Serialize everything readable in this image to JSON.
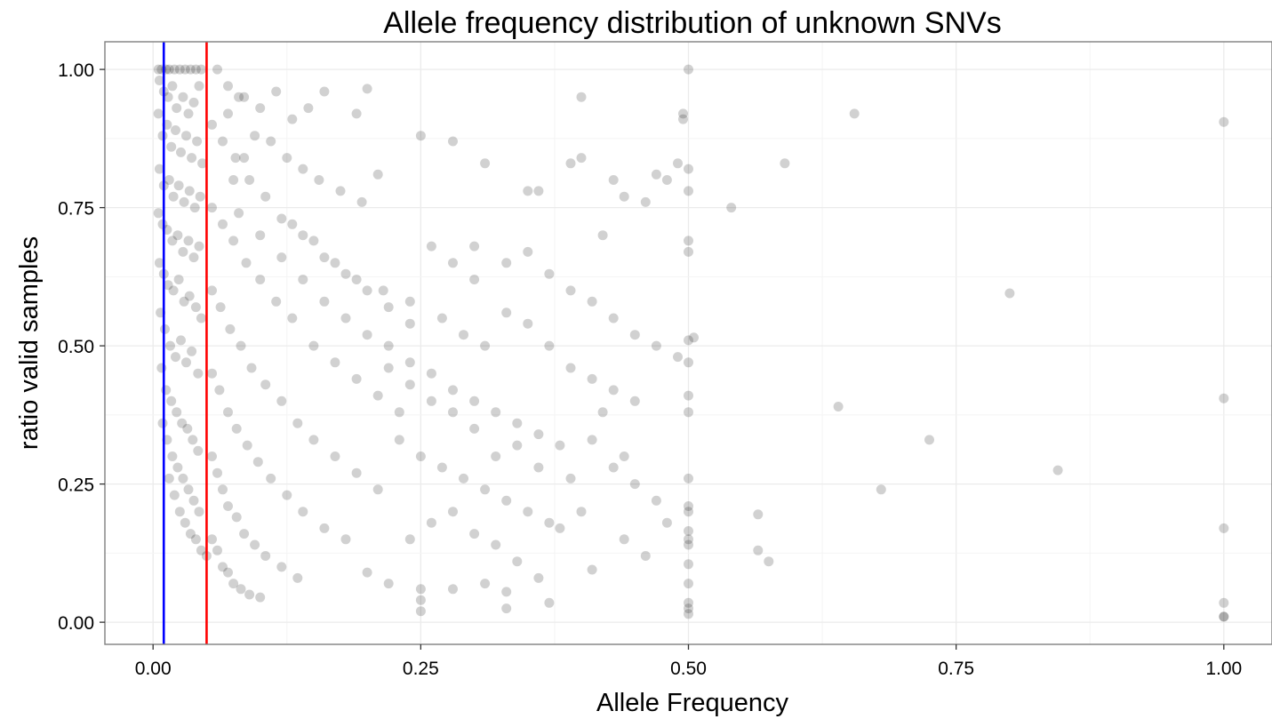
{
  "chart_data": {
    "type": "scatter",
    "title": "Allele frequency distribution of unknown SNVs",
    "xlabel": "Allele Frequency",
    "ylabel": "ratio valid samples",
    "xlim": [
      -0.045,
      1.045
    ],
    "ylim": [
      -0.04,
      1.05
    ],
    "x_ticks": [
      "0.00",
      "0.25",
      "0.50",
      "0.75",
      "1.00"
    ],
    "y_ticks": [
      "0.00",
      "0.25",
      "0.50",
      "0.75",
      "1.00"
    ],
    "x_tick_values": [
      0,
      0.25,
      0.5,
      0.75,
      1.0
    ],
    "y_tick_values": [
      0,
      0.25,
      0.5,
      0.75,
      1.0
    ],
    "grid": true,
    "point_color": "#000000",
    "point_opacity": 0.18,
    "reference_lines": [
      {
        "axis": "x",
        "value": 0.01,
        "color": "#0000ff"
      },
      {
        "axis": "x",
        "value": 0.05,
        "color": "#ff0000"
      }
    ],
    "points": [
      [
        0.005,
        1.0
      ],
      [
        0.008,
        1.0
      ],
      [
        0.012,
        1.0
      ],
      [
        0.015,
        1.0
      ],
      [
        0.02,
        1.0
      ],
      [
        0.025,
        1.0
      ],
      [
        0.03,
        1.0
      ],
      [
        0.035,
        1.0
      ],
      [
        0.04,
        1.0
      ],
      [
        0.045,
        1.0
      ],
      [
        0.006,
        0.98
      ],
      [
        0.01,
        0.96
      ],
      [
        0.014,
        0.95
      ],
      [
        0.018,
        0.97
      ],
      [
        0.022,
        0.93
      ],
      [
        0.028,
        0.95
      ],
      [
        0.033,
        0.92
      ],
      [
        0.038,
        0.94
      ],
      [
        0.043,
        0.97
      ],
      [
        0.005,
        0.92
      ],
      [
        0.009,
        0.88
      ],
      [
        0.013,
        0.9
      ],
      [
        0.017,
        0.86
      ],
      [
        0.021,
        0.89
      ],
      [
        0.026,
        0.85
      ],
      [
        0.031,
        0.88
      ],
      [
        0.036,
        0.84
      ],
      [
        0.041,
        0.87
      ],
      [
        0.046,
        0.83
      ],
      [
        0.006,
        0.82
      ],
      [
        0.01,
        0.79
      ],
      [
        0.015,
        0.8
      ],
      [
        0.019,
        0.77
      ],
      [
        0.024,
        0.79
      ],
      [
        0.029,
        0.76
      ],
      [
        0.034,
        0.78
      ],
      [
        0.039,
        0.75
      ],
      [
        0.044,
        0.77
      ],
      [
        0.005,
        0.74
      ],
      [
        0.009,
        0.72
      ],
      [
        0.013,
        0.71
      ],
      [
        0.018,
        0.69
      ],
      [
        0.023,
        0.7
      ],
      [
        0.028,
        0.67
      ],
      [
        0.033,
        0.69
      ],
      [
        0.038,
        0.66
      ],
      [
        0.043,
        0.68
      ],
      [
        0.006,
        0.65
      ],
      [
        0.01,
        0.63
      ],
      [
        0.014,
        0.61
      ],
      [
        0.019,
        0.6
      ],
      [
        0.024,
        0.62
      ],
      [
        0.029,
        0.58
      ],
      [
        0.034,
        0.59
      ],
      [
        0.04,
        0.57
      ],
      [
        0.045,
        0.55
      ],
      [
        0.007,
        0.56
      ],
      [
        0.011,
        0.53
      ],
      [
        0.016,
        0.5
      ],
      [
        0.021,
        0.48
      ],
      [
        0.026,
        0.51
      ],
      [
        0.031,
        0.47
      ],
      [
        0.036,
        0.49
      ],
      [
        0.042,
        0.45
      ],
      [
        0.008,
        0.46
      ],
      [
        0.012,
        0.42
      ],
      [
        0.017,
        0.4
      ],
      [
        0.022,
        0.38
      ],
      [
        0.027,
        0.36
      ],
      [
        0.032,
        0.35
      ],
      [
        0.037,
        0.33
      ],
      [
        0.042,
        0.31
      ],
      [
        0.009,
        0.36
      ],
      [
        0.013,
        0.33
      ],
      [
        0.018,
        0.3
      ],
      [
        0.023,
        0.28
      ],
      [
        0.028,
        0.26
      ],
      [
        0.033,
        0.24
      ],
      [
        0.038,
        0.22
      ],
      [
        0.043,
        0.2
      ],
      [
        0.015,
        0.26
      ],
      [
        0.02,
        0.23
      ],
      [
        0.025,
        0.2
      ],
      [
        0.03,
        0.18
      ],
      [
        0.035,
        0.16
      ],
      [
        0.04,
        0.15
      ],
      [
        0.045,
        0.13
      ],
      [
        0.05,
        0.12
      ],
      [
        0.055,
        0.15
      ],
      [
        0.06,
        0.13
      ],
      [
        0.065,
        0.1
      ],
      [
        0.07,
        0.09
      ],
      [
        0.075,
        0.07
      ],
      [
        0.082,
        0.06
      ],
      [
        0.09,
        0.05
      ],
      [
        0.1,
        0.045
      ],
      [
        0.055,
        0.3
      ],
      [
        0.06,
        0.27
      ],
      [
        0.065,
        0.24
      ],
      [
        0.07,
        0.21
      ],
      [
        0.078,
        0.19
      ],
      [
        0.085,
        0.16
      ],
      [
        0.095,
        0.14
      ],
      [
        0.105,
        0.12
      ],
      [
        0.12,
        0.1
      ],
      [
        0.135,
        0.08
      ],
      [
        0.055,
        0.45
      ],
      [
        0.062,
        0.42
      ],
      [
        0.07,
        0.38
      ],
      [
        0.078,
        0.35
      ],
      [
        0.088,
        0.32
      ],
      [
        0.098,
        0.29
      ],
      [
        0.11,
        0.26
      ],
      [
        0.125,
        0.23
      ],
      [
        0.14,
        0.2
      ],
      [
        0.16,
        0.17
      ],
      [
        0.18,
        0.15
      ],
      [
        0.055,
        0.6
      ],
      [
        0.063,
        0.57
      ],
      [
        0.072,
        0.53
      ],
      [
        0.082,
        0.5
      ],
      [
        0.092,
        0.46
      ],
      [
        0.105,
        0.43
      ],
      [
        0.12,
        0.4
      ],
      [
        0.135,
        0.36
      ],
      [
        0.15,
        0.33
      ],
      [
        0.17,
        0.3
      ],
      [
        0.19,
        0.27
      ],
      [
        0.21,
        0.24
      ],
      [
        0.055,
        0.75
      ],
      [
        0.065,
        0.72
      ],
      [
        0.075,
        0.69
      ],
      [
        0.087,
        0.65
      ],
      [
        0.1,
        0.62
      ],
      [
        0.115,
        0.58
      ],
      [
        0.13,
        0.55
      ],
      [
        0.15,
        0.5
      ],
      [
        0.17,
        0.47
      ],
      [
        0.19,
        0.44
      ],
      [
        0.21,
        0.41
      ],
      [
        0.23,
        0.38
      ],
      [
        0.055,
        0.9
      ],
      [
        0.065,
        0.87
      ],
      [
        0.077,
        0.84
      ],
      [
        0.09,
        0.8
      ],
      [
        0.105,
        0.77
      ],
      [
        0.12,
        0.73
      ],
      [
        0.14,
        0.7
      ],
      [
        0.16,
        0.66
      ],
      [
        0.18,
        0.63
      ],
      [
        0.2,
        0.6
      ],
      [
        0.22,
        0.57
      ],
      [
        0.24,
        0.54
      ],
      [
        0.06,
        1.0
      ],
      [
        0.07,
        0.97
      ],
      [
        0.085,
        0.95
      ],
      [
        0.1,
        0.93
      ],
      [
        0.115,
        0.96
      ],
      [
        0.13,
        0.91
      ],
      [
        0.145,
        0.93
      ],
      [
        0.16,
        0.96
      ],
      [
        0.19,
        0.92
      ],
      [
        0.2,
        0.965
      ],
      [
        0.11,
        0.87
      ],
      [
        0.125,
        0.84
      ],
      [
        0.14,
        0.82
      ],
      [
        0.155,
        0.8
      ],
      [
        0.175,
        0.78
      ],
      [
        0.195,
        0.76
      ],
      [
        0.21,
        0.81
      ],
      [
        0.25,
        0.88
      ],
      [
        0.28,
        0.87
      ],
      [
        0.31,
        0.83
      ],
      [
        0.13,
        0.72
      ],
      [
        0.15,
        0.69
      ],
      [
        0.17,
        0.65
      ],
      [
        0.19,
        0.62
      ],
      [
        0.215,
        0.6
      ],
      [
        0.24,
        0.58
      ],
      [
        0.26,
        0.68
      ],
      [
        0.28,
        0.65
      ],
      [
        0.3,
        0.62
      ],
      [
        0.22,
        0.5
      ],
      [
        0.24,
        0.47
      ],
      [
        0.26,
        0.45
      ],
      [
        0.28,
        0.42
      ],
      [
        0.3,
        0.4
      ],
      [
        0.32,
        0.38
      ],
      [
        0.34,
        0.36
      ],
      [
        0.36,
        0.34
      ],
      [
        0.38,
        0.32
      ],
      [
        0.23,
        0.33
      ],
      [
        0.25,
        0.3
      ],
      [
        0.27,
        0.28
      ],
      [
        0.29,
        0.26
      ],
      [
        0.31,
        0.24
      ],
      [
        0.33,
        0.22
      ],
      [
        0.35,
        0.2
      ],
      [
        0.37,
        0.18
      ],
      [
        0.2,
        0.09
      ],
      [
        0.22,
        0.07
      ],
      [
        0.25,
        0.06
      ],
      [
        0.25,
        0.04
      ],
      [
        0.25,
        0.02
      ],
      [
        0.28,
        0.06
      ],
      [
        0.31,
        0.07
      ],
      [
        0.33,
        0.055
      ],
      [
        0.33,
        0.025
      ],
      [
        0.37,
        0.035
      ],
      [
        0.24,
        0.15
      ],
      [
        0.26,
        0.18
      ],
      [
        0.28,
        0.2
      ],
      [
        0.3,
        0.16
      ],
      [
        0.32,
        0.14
      ],
      [
        0.34,
        0.11
      ],
      [
        0.36,
        0.08
      ],
      [
        0.38,
        0.17
      ],
      [
        0.4,
        0.2
      ],
      [
        0.41,
        0.095
      ],
      [
        0.27,
        0.55
      ],
      [
        0.29,
        0.52
      ],
      [
        0.31,
        0.5
      ],
      [
        0.33,
        0.56
      ],
      [
        0.35,
        0.54
      ],
      [
        0.37,
        0.5
      ],
      [
        0.39,
        0.46
      ],
      [
        0.41,
        0.44
      ],
      [
        0.43,
        0.42
      ],
      [
        0.45,
        0.4
      ],
      [
        0.3,
        0.68
      ],
      [
        0.33,
        0.65
      ],
      [
        0.35,
        0.67
      ],
      [
        0.37,
        0.63
      ],
      [
        0.39,
        0.6
      ],
      [
        0.41,
        0.58
      ],
      [
        0.43,
        0.55
      ],
      [
        0.45,
        0.52
      ],
      [
        0.47,
        0.5
      ],
      [
        0.49,
        0.48
      ],
      [
        0.35,
        0.78
      ],
      [
        0.36,
        0.78
      ],
      [
        0.39,
        0.83
      ],
      [
        0.4,
        0.84
      ],
      [
        0.42,
        0.7
      ],
      [
        0.43,
        0.8
      ],
      [
        0.44,
        0.77
      ],
      [
        0.46,
        0.76
      ],
      [
        0.47,
        0.81
      ],
      [
        0.48,
        0.8
      ],
      [
        0.49,
        0.83
      ],
      [
        0.5,
        0.82
      ],
      [
        0.4,
        0.95
      ],
      [
        0.495,
        0.92
      ],
      [
        0.495,
        0.91
      ],
      [
        0.5,
        1.0
      ],
      [
        0.5,
        0.78
      ],
      [
        0.5,
        0.69
      ],
      [
        0.5,
        0.67
      ],
      [
        0.5,
        0.51
      ],
      [
        0.5,
        0.47
      ],
      [
        0.5,
        0.41
      ],
      [
        0.5,
        0.38
      ],
      [
        0.5,
        0.26
      ],
      [
        0.5,
        0.21
      ],
      [
        0.5,
        0.2
      ],
      [
        0.5,
        0.165
      ],
      [
        0.5,
        0.15
      ],
      [
        0.5,
        0.14
      ],
      [
        0.5,
        0.105
      ],
      [
        0.5,
        0.07
      ],
      [
        0.5,
        0.035
      ],
      [
        0.5,
        0.025
      ],
      [
        0.5,
        0.015
      ],
      [
        0.42,
        0.38
      ],
      [
        0.44,
        0.3
      ],
      [
        0.45,
        0.25
      ],
      [
        0.47,
        0.22
      ],
      [
        0.48,
        0.18
      ],
      [
        0.46,
        0.12
      ],
      [
        0.44,
        0.15
      ],
      [
        0.43,
        0.28
      ],
      [
        0.41,
        0.33
      ],
      [
        0.39,
        0.26
      ],
      [
        0.36,
        0.28
      ],
      [
        0.34,
        0.32
      ],
      [
        0.32,
        0.3
      ],
      [
        0.3,
        0.35
      ],
      [
        0.28,
        0.38
      ],
      [
        0.26,
        0.4
      ],
      [
        0.24,
        0.43
      ],
      [
        0.22,
        0.46
      ],
      [
        0.2,
        0.52
      ],
      [
        0.18,
        0.55
      ],
      [
        0.16,
        0.58
      ],
      [
        0.14,
        0.62
      ],
      [
        0.12,
        0.66
      ],
      [
        0.1,
        0.7
      ],
      [
        0.08,
        0.74
      ],
      [
        0.075,
        0.8
      ],
      [
        0.085,
        0.84
      ],
      [
        0.095,
        0.88
      ],
      [
        0.07,
        0.92
      ],
      [
        0.08,
        0.95
      ],
      [
        0.505,
        0.515
      ],
      [
        0.54,
        0.75
      ],
      [
        0.565,
        0.195
      ],
      [
        0.565,
        0.13
      ],
      [
        0.575,
        0.11
      ],
      [
        0.59,
        0.83
      ],
      [
        0.64,
        0.39
      ],
      [
        0.655,
        0.92
      ],
      [
        0.68,
        0.24
      ],
      [
        0.725,
        0.33
      ],
      [
        0.8,
        0.595
      ],
      [
        0.845,
        0.275
      ],
      [
        1.0,
        0.905
      ],
      [
        1.0,
        0.405
      ],
      [
        1.0,
        0.17
      ],
      [
        1.0,
        0.035
      ],
      [
        1.0,
        0.01
      ],
      [
        1.0,
        0.01
      ]
    ]
  }
}
